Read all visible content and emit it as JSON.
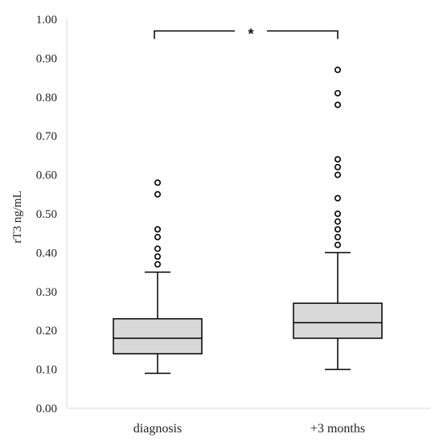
{
  "chart_data": {
    "type": "box",
    "ylabel": "rT3 ng/mL",
    "ylim": [
      0,
      1.0
    ],
    "yticks": [
      "0.00",
      "0.10",
      "0.20",
      "0.30",
      "0.40",
      "0.50",
      "0.60",
      "0.70",
      "0.80",
      "0.90",
      "1.00"
    ],
    "categories": [
      "diagnosis",
      "+3 months"
    ],
    "boxes": [
      {
        "category": "diagnosis",
        "whisker_low": 0.09,
        "q1": 0.14,
        "median": 0.18,
        "q3": 0.23,
        "whisker_high": 0.35,
        "outliers": [
          0.37,
          0.39,
          0.41,
          0.44,
          0.46,
          0.55,
          0.58
        ]
      },
      {
        "category": "+3 months",
        "whisker_low": 0.1,
        "q1": 0.18,
        "median": 0.22,
        "q3": 0.27,
        "whisker_high": 0.4,
        "outliers": [
          0.42,
          0.44,
          0.46,
          0.48,
          0.5,
          0.54,
          0.6,
          0.62,
          0.64,
          0.78,
          0.81,
          0.87
        ]
      }
    ],
    "significance": {
      "label": "*",
      "between": [
        "diagnosis",
        "+3 months"
      ],
      "level": 0.97
    },
    "box_fill": "#d9d9d9",
    "line_color": "#000000",
    "axis_color": "#d9d9d9",
    "grid": false
  }
}
